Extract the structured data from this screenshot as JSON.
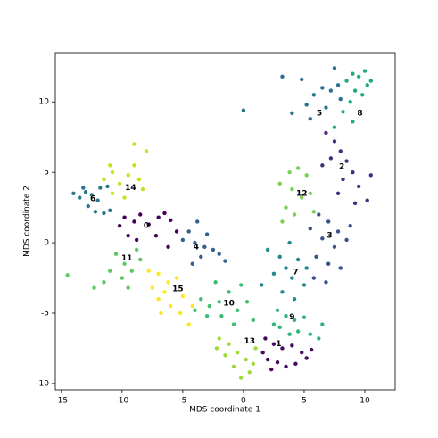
{
  "chart_data": {
    "type": "scatter",
    "xlabel": "MDS coordinate 1",
    "ylabel": "MDS coordinate 2",
    "xlim": [
      -15.5,
      12.5
    ],
    "ylim": [
      -10.45,
      13.5
    ],
    "xticks": [
      -15,
      -10,
      -5,
      0,
      5,
      10
    ],
    "yticks": [
      -10,
      -5,
      0,
      5,
      10
    ],
    "series": [
      {
        "color": "#440154",
        "x": [
          -9.8,
          -9,
          -8.5,
          -7.8,
          -7,
          -6.5,
          -6,
          -9.5,
          -8.8,
          -7.2,
          -6.2,
          -5.5,
          -10.2
        ],
        "y": [
          1.8,
          1.5,
          2,
          1.3,
          1.8,
          2.1,
          1.6,
          0.5,
          0.2,
          0.5,
          -0.3,
          0.8,
          1.2
        ]
      },
      {
        "color": "#45095d",
        "x": [
          1.8,
          2.5,
          3.2,
          4,
          4.8,
          5.2,
          2,
          2.8,
          3.5,
          1.6,
          4.3,
          5.6,
          2.3
        ],
        "y": [
          -6.8,
          -7.2,
          -7.5,
          -7.3,
          -7.8,
          -8.2,
          -8.3,
          -8.5,
          -8.8,
          -7.8,
          -8.6,
          -7.6,
          -9
        ]
      },
      {
        "color": "#472d7b",
        "x": [
          6.8,
          7.5,
          8,
          8.5,
          7.2,
          9,
          8.2,
          9.5,
          10.5,
          7.8,
          9.2,
          10.2,
          6.5
        ],
        "y": [
          7.8,
          7.2,
          6.5,
          5.8,
          6,
          5,
          4.5,
          4,
          4.8,
          3.5,
          2.8,
          3,
          5.5
        ]
      },
      {
        "color": "#3b528b",
        "x": [
          6.2,
          7,
          7.8,
          6.5,
          7.5,
          8.5,
          6,
          7,
          8,
          5.8,
          6.8,
          8.8,
          5.5
        ],
        "y": [
          2,
          1.5,
          0.8,
          0.3,
          -0.3,
          0.2,
          -1,
          -1.5,
          -1.8,
          -2.5,
          -2.8,
          1.2,
          1
        ]
      },
      {
        "color": "#355f8d",
        "x": [
          -3.8,
          -4.5,
          -5,
          -4,
          -3.2,
          -2.5,
          -3.5,
          -4.2,
          -2,
          -1.5,
          -3
        ],
        "y": [
          1.5,
          0.8,
          0.2,
          0,
          -0.3,
          -0.5,
          -1,
          -1.5,
          -0.8,
          -1.3,
          0.6
        ]
      },
      {
        "color": "#2c718e",
        "x": [
          4,
          5.2,
          5.8,
          6.5,
          7.2,
          7.8,
          8,
          6.8,
          5.5,
          7.5,
          3.2,
          0,
          4.8
        ],
        "y": [
          9.2,
          9.8,
          10.5,
          11,
          10.8,
          11.2,
          10.2,
          9.6,
          8.8,
          12.4,
          11.8,
          9.4,
          11.6
        ]
      },
      {
        "color": "#2a788e",
        "x": [
          -14,
          -13.5,
          -13,
          -12.5,
          -12,
          -12.8,
          -12.2,
          -11.5,
          -11,
          -11.8,
          -11.2,
          -13.2
        ],
        "y": [
          3.5,
          3.2,
          3.6,
          3.4,
          3,
          2.6,
          2.2,
          2.1,
          2.3,
          3.9,
          4,
          3.9
        ]
      },
      {
        "color": "#23898e",
        "x": [
          3,
          3.5,
          4,
          4.5,
          5,
          3.2,
          4.2,
          2.5,
          2,
          3.8,
          5.2,
          1.5
        ],
        "y": [
          -1,
          -1.8,
          -2.5,
          -1.2,
          -3,
          -3.5,
          -4,
          -2.2,
          -0.5,
          0,
          -1.8,
          -3
        ]
      },
      {
        "color": "#22a884",
        "x": [
          8.5,
          9,
          9.5,
          10,
          10.5,
          9.2,
          8.8,
          9.8,
          8.2,
          10.2,
          9,
          7.5
        ],
        "y": [
          11.5,
          12,
          11.8,
          12.2,
          11.5,
          10.8,
          10,
          10.5,
          9.3,
          11.2,
          8.6,
          8.2
        ]
      },
      {
        "color": "#2fb47c",
        "x": [
          2.8,
          3.5,
          4.2,
          5,
          3,
          4.5,
          5.5,
          2.5,
          6.2,
          3.8,
          6.5
        ],
        "y": [
          -4.8,
          -5.2,
          -5.5,
          -5.3,
          -6,
          -6.3,
          -6.5,
          -5.8,
          -6.8,
          -6.5,
          -5.8
        ]
      },
      {
        "color": "#3fbc73",
        "x": [
          -3.5,
          -2.8,
          -2,
          -1.2,
          -0.5,
          0.3,
          -1.8,
          -3,
          -0.8,
          0.8,
          -2.3,
          -0.2,
          -4
        ],
        "y": [
          -4,
          -4.5,
          -4.2,
          -3.5,
          -4.8,
          -4.2,
          -5.2,
          -5.2,
          -5.8,
          -5.5,
          -2.8,
          -3,
          -4.8
        ]
      },
      {
        "color": "#5ec962",
        "x": [
          -10.5,
          -9.8,
          -9.2,
          -8.5,
          -10,
          -11,
          -9.5,
          -12.3,
          -14.5,
          -11.5,
          -8.8
        ],
        "y": [
          -0.8,
          -1.5,
          -2,
          -1.2,
          -2.5,
          -2,
          -3.2,
          -3.2,
          -2.3,
          -2.8,
          -0.5
        ]
      },
      {
        "color": "#7ad151",
        "x": [
          3.8,
          4.5,
          5.2,
          4,
          4.8,
          3.5,
          4.2,
          5.5,
          3.2,
          5.8,
          3
        ],
        "y": [
          5,
          5.3,
          4.8,
          3.8,
          3.2,
          2.5,
          2,
          3.5,
          1.5,
          2.2,
          4.2
        ]
      },
      {
        "color": "#9fda3a",
        "x": [
          -2,
          -1.2,
          -0.5,
          0.2,
          -1.5,
          -0.8,
          0.5,
          1,
          -2.2,
          -0.2,
          0.8
        ],
        "y": [
          -6.8,
          -7.2,
          -7.8,
          -8.3,
          -8,
          -8.8,
          -9.2,
          -7.5,
          -7.5,
          -9.6,
          -8.6
        ]
      },
      {
        "color": "#c8e020",
        "x": [
          -11.5,
          -10.8,
          -10.2,
          -9.5,
          -9,
          -8.6,
          -9,
          -8,
          -10.8,
          -9.8,
          -8.3,
          -11
        ],
        "y": [
          4.5,
          5,
          4.2,
          4.8,
          5.5,
          4.5,
          7,
          6.5,
          3.5,
          3.2,
          3.8,
          5.5
        ]
      },
      {
        "color": "#fde725",
        "x": [
          -7.8,
          -7,
          -6.2,
          -5.5,
          -7.5,
          -6.5,
          -5,
          -6,
          -5.2,
          -4.2,
          -7,
          -4.5,
          -6.8
        ],
        "y": [
          -2,
          -2.2,
          -2.8,
          -2.5,
          -3.2,
          -3.5,
          -3.8,
          -4.5,
          -5,
          -4.5,
          -4,
          -5.8,
          -5
        ]
      }
    ],
    "annotations": [
      {
        "text": "0",
        "x": -8,
        "y": 1.2
      },
      {
        "text": "1",
        "x": 2.9,
        "y": -7.2
      },
      {
        "text": "2",
        "x": 8.1,
        "y": 5.4
      },
      {
        "text": "3",
        "x": 7.1,
        "y": 0.5
      },
      {
        "text": "4",
        "x": -3.9,
        "y": -0.3
      },
      {
        "text": "5",
        "x": 6.25,
        "y": 9.2
      },
      {
        "text": "6",
        "x": -12.4,
        "y": 3.1
      },
      {
        "text": "7",
        "x": 4.3,
        "y": -2.1
      },
      {
        "text": "8",
        "x": 9.6,
        "y": 9.2
      },
      {
        "text": "9",
        "x": 4,
        "y": -5.3
      },
      {
        "text": "10",
        "x": -1.2,
        "y": -4.3
      },
      {
        "text": "11",
        "x": -9.6,
        "y": -1.1
      },
      {
        "text": "12",
        "x": 4.8,
        "y": 3.5
      },
      {
        "text": "13",
        "x": 0.5,
        "y": -7
      },
      {
        "text": "14",
        "x": -9.3,
        "y": 3.9
      },
      {
        "text": "15",
        "x": -5.4,
        "y": -3.3
      }
    ]
  }
}
